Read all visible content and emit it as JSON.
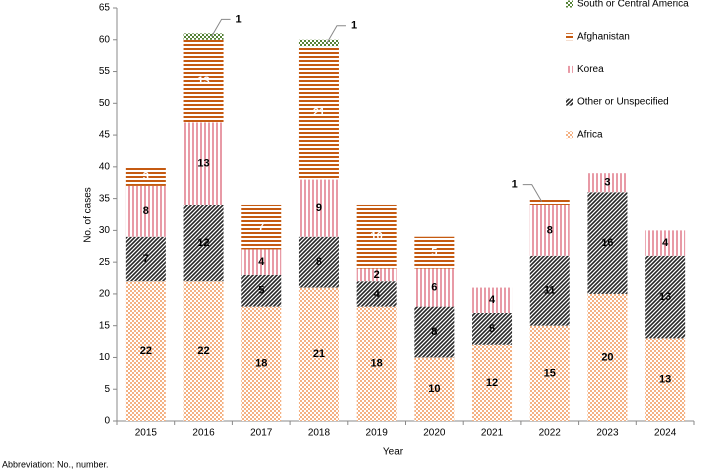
{
  "chart_data": {
    "type": "stacked_bar",
    "x_label": "Year",
    "y_label": "No. of cases",
    "footnote": "Abbreviation: No., number.",
    "categories": [
      "2015",
      "2016",
      "2017",
      "2018",
      "2019",
      "2020",
      "2021",
      "2022",
      "2023",
      "2024"
    ],
    "series": [
      {
        "name": "Africa",
        "color": "#f4b183",
        "pattern": "checker",
        "values": [
          22,
          22,
          18,
          21,
          18,
          10,
          12,
          15,
          20,
          13
        ]
      },
      {
        "name": "Other or Unspecified",
        "color": "#262626",
        "pattern": "diagonal",
        "values": [
          7,
          12,
          5,
          8,
          4,
          8,
          5,
          11,
          16,
          13
        ]
      },
      {
        "name": "Korea",
        "color": "#e89aa6",
        "pattern": "vertical",
        "values": [
          8,
          13,
          4,
          9,
          2,
          6,
          4,
          8,
          3,
          4
        ]
      },
      {
        "name": "Afghanistan",
        "color": "#c55a11",
        "pattern": "horizontal",
        "values": [
          3,
          13,
          7,
          21,
          10,
          5,
          0,
          1,
          0,
          0
        ]
      },
      {
        "name": "South or Central America",
        "color": "#548235",
        "pattern": "checker",
        "values": [
          0,
          1,
          0,
          1,
          0,
          0,
          0,
          0,
          0,
          0
        ]
      }
    ],
    "ylim": [
      0,
      65
    ],
    "yticks": [
      0,
      5,
      10,
      15,
      20,
      25,
      30,
      35,
      40,
      45,
      50,
      55,
      60,
      65
    ],
    "legend": "top-right"
  }
}
